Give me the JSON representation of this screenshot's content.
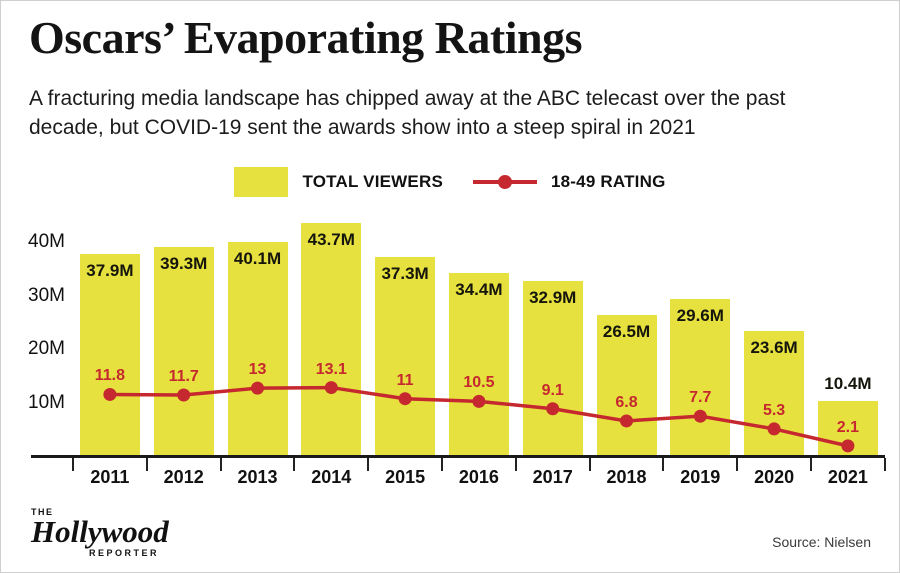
{
  "header": {
    "title": "Oscars’ Evaporating Ratings",
    "subtitle": "A fracturing media landscape has chipped away at the ABC telecast over the past decade, but COVID-19 sent the awards show into a steep spiral in 2021"
  },
  "legend": {
    "viewers_label": "TOTAL VIEWERS",
    "rating_label": "18-49 RATING"
  },
  "chart_data": {
    "type": "bar",
    "subtype": "bar+line combo",
    "categories": [
      2011,
      2012,
      2013,
      2014,
      2015,
      2016,
      2017,
      2018,
      2019,
      2020,
      2021
    ],
    "series": [
      {
        "name": "Total Viewers",
        "unit": "millions",
        "style": "bar",
        "values": [
          37.9,
          39.3,
          40.1,
          43.7,
          37.3,
          34.4,
          32.9,
          26.5,
          29.6,
          23.6,
          10.4
        ]
      },
      {
        "name": "18-49 Rating",
        "unit": "rating points",
        "style": "line",
        "values": [
          11.8,
          11.7,
          13,
          13.1,
          11,
          10.5,
          9.1,
          6.8,
          7.7,
          5.3,
          2.1
        ]
      }
    ],
    "yticks": [
      "40M",
      "30M",
      "20M",
      "10M"
    ],
    "ytick_values": [
      40,
      30,
      20,
      10
    ],
    "ylim": [
      0,
      45
    ],
    "grid": false,
    "legend_position": "top-center",
    "colors": {
      "bar": "#e6e13e",
      "line": "#c5282f"
    }
  },
  "footer": {
    "logo": {
      "the": "THE",
      "hollywood": "Hollywood",
      "reporter": "REPORTER"
    },
    "source": "Source: Nielsen"
  }
}
